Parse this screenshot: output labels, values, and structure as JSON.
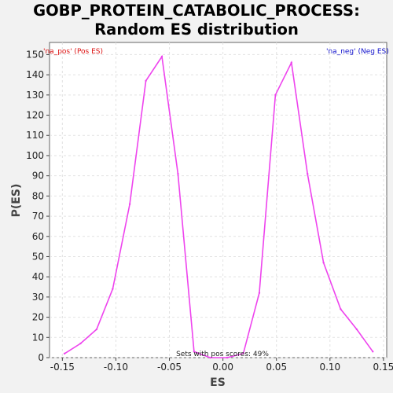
{
  "chart_data": {
    "type": "line",
    "title_line1": "GOBP_PROTEIN_CATABOLIC_PROCESS:",
    "title_line2": "Random ES distribution",
    "xlabel": "ES",
    "ylabel": "P(ES)",
    "xlim": [
      -0.162,
      0.153
    ],
    "ylim": [
      0,
      156
    ],
    "xticks": [
      "-0.15",
      "-0.10",
      "-0.05",
      "0.00",
      "0.05",
      "0.10",
      "0.15"
    ],
    "xtick_values": [
      -0.15,
      -0.1,
      -0.05,
      0.0,
      0.05,
      0.1,
      0.15
    ],
    "yticks": [
      0,
      10,
      20,
      30,
      40,
      50,
      60,
      70,
      80,
      90,
      100,
      110,
      120,
      130,
      140,
      150
    ],
    "grid": true,
    "legend_pos": "'na_pos' (Pos ES)",
    "legend_neg": "'na_neg' (Neg ES)",
    "annotation": "Sets with pos scores: 49%",
    "line_color": "#ee44ee",
    "series": [
      {
        "x": [
          -0.148,
          -0.133,
          -0.118,
          -0.103,
          -0.087,
          -0.072,
          -0.057,
          -0.042,
          -0.027,
          -0.012,
          0.004,
          0.019,
          0.034,
          0.049,
          0.064,
          0.079,
          0.094,
          0.11,
          0.125,
          0.14
        ],
        "y": [
          2,
          7,
          14,
          34,
          76,
          137,
          149,
          91,
          3,
          0,
          0,
          2,
          32,
          130,
          146,
          91,
          47,
          24,
          14,
          3
        ]
      }
    ]
  }
}
